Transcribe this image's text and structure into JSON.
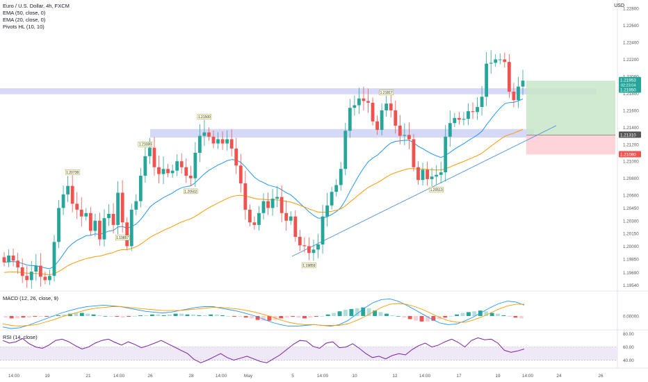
{
  "legend": {
    "symbol": "Euro / U.S. Dollar, 4h, FXCM",
    "ema50": "EMA (50, close, 0)",
    "ema20": "EMA (20, close, 0)",
    "pivots": "Pivots HL (10, 10)",
    "macd": "MACD (12, 26, close, 9)",
    "rsi": "RSI (14, close)"
  },
  "currency_label": "USD",
  "colors": {
    "up": "#26a69a",
    "down": "#ef5350",
    "ema20": "#2196f3",
    "ema50": "#ff9800",
    "zone": "#b4b8f0",
    "target": "#c8e6c9",
    "stop": "#ffcdd2",
    "rsi": "#7b1fa2",
    "rsi_band": "#ede7f6"
  },
  "chart_data": [
    {
      "type": "candlestick",
      "title": "Euro / U.S. Dollar, 4h, FXCM",
      "y_ticks": [
        "1.22800",
        "1.22600",
        "1.22400",
        "1.22200",
        "1.22000",
        "1.21800",
        "1.21600",
        "1.21400",
        "1.21200",
        "1.21000",
        "1.20800",
        "1.20600",
        "1.20450",
        "1.20300",
        "1.20150",
        "1.20000",
        "1.19850",
        "1.19690",
        "1.19540"
      ],
      "x_ticks": [
        "14:00",
        "19",
        "21",
        "14:00",
        "26",
        "28",
        "14:00",
        "May",
        "5",
        "14:00",
        "10",
        "12",
        "14:00",
        "17",
        "19",
        "14:00",
        "24",
        "26"
      ],
      "price_badges": [
        {
          "label": "1.21953",
          "sub": "02:23:04",
          "color": "#26a69a"
        },
        {
          "label": "1.21950",
          "color": "#26a69a"
        },
        {
          "label": "1.21310",
          "color": "#555555"
        },
        {
          "label": "1.21080",
          "color": "#ef5350"
        }
      ],
      "pivot_labels": [
        {
          "label": "1.20738",
          "high": true
        },
        {
          "label": "1.21089",
          "high": true
        },
        {
          "label": "1.21500",
          "high": true
        },
        {
          "label": "1.20502",
          "high": false
        },
        {
          "label": "1.19857",
          "high": false
        },
        {
          "label": "1.19859",
          "high": false
        },
        {
          "label": "1.21817",
          "high": true
        },
        {
          "label": "1.20513",
          "high": false
        }
      ],
      "horizontal_zones": [
        [
          1.2179,
          1.2186
        ],
        [
          1.2128,
          1.2138
        ]
      ],
      "trendline": {
        "x": [
          61,
          116
        ],
        "y": [
          1.1991,
          1.2141
        ]
      },
      "position": {
        "entry": 1.2131,
        "target": 1.2195,
        "stop": 1.2108,
        "x_start": 109,
        "x_end": 128
      },
      "ylim": [
        1.1948,
        1.229
      ],
      "closes": [
        1.1981,
        1.1989,
        1.1983,
        1.1975,
        1.1965,
        1.196,
        1.197,
        1.1977,
        1.1964,
        1.196,
        1.1965,
        1.2005,
        1.2045,
        1.2061,
        1.2071,
        1.205,
        1.2043,
        1.2035,
        1.2039,
        1.2018,
        1.203,
        1.2008,
        1.2033,
        1.2038,
        1.2025,
        1.2063,
        1.2028,
        1.2,
        1.2043,
        1.2053,
        1.2083,
        1.2106,
        1.2116,
        1.2093,
        1.2085,
        1.2091,
        1.2086,
        1.2089,
        1.21,
        1.2093,
        1.2083,
        1.208,
        1.211,
        1.213,
        1.2134,
        1.2129,
        1.2121,
        1.2126,
        1.2121,
        1.2126,
        1.2115,
        1.2095,
        1.2074,
        1.2043,
        1.2028,
        1.2025,
        1.2039,
        1.2053,
        1.2045,
        1.2056,
        1.2058,
        1.2039,
        1.203,
        1.2035,
        1.2011,
        1.2001,
        1.2,
        1.1992,
        1.1996,
        1.2002,
        1.2035,
        1.2048,
        1.2064,
        1.2072,
        1.2091,
        1.2136,
        1.2163,
        1.2166,
        1.2174,
        1.2171,
        1.2169,
        1.2147,
        1.2137,
        1.216,
        1.2168,
        1.216,
        1.2142,
        1.213,
        1.2131,
        1.2126,
        1.2093,
        1.2078,
        1.209,
        1.2079,
        1.2082,
        1.2084,
        1.2087,
        1.2129,
        1.2145,
        1.2151,
        1.2149,
        1.215,
        1.2159,
        1.2158,
        1.2164,
        1.2176,
        1.2215,
        1.2216,
        1.222,
        1.222,
        1.2217,
        1.2182,
        1.2172,
        1.2188,
        1.2195
      ]
    },
    {
      "type": "macd",
      "title": "MACD (12, 26, close, 9)",
      "y_ticks": [
        "0.00000"
      ],
      "hist": [
        -0.0002,
        -0.0003,
        -0.0003,
        -0.0002,
        -0.0002,
        -0.0001,
        -0.0001,
        -0.0001,
        0.0,
        0.0001,
        0.0002,
        0.0003,
        0.0004,
        0.0004,
        0.0003,
        0.0002,
        0.0001,
        0.0,
        -0.0001,
        -0.0001,
        -0.0002,
        -0.0001,
        0.0,
        0.0001,
        0.0001,
        0.0002,
        0.0002,
        0.0001,
        0.0002,
        0.0003,
        0.0003,
        0.0002,
        0.0002,
        0.0001,
        0.0001,
        0.0002,
        0.0002,
        0.0001,
        0.0,
        -0.0001,
        -0.0001,
        -0.0002,
        -0.0003,
        -0.0005,
        -0.0006,
        -0.0006,
        -0.0005,
        -0.0003,
        -0.0002,
        -0.0001,
        -0.0002,
        -0.0003,
        -0.0002,
        -0.0001,
        0.0,
        0.0002,
        0.0004,
        0.0006,
        0.0008,
        0.0009,
        0.001,
        0.0011,
        0.001,
        0.0007,
        0.0005,
        0.0003,
        0.0001,
        0.0,
        -0.0002,
        -0.0004,
        -0.0006,
        -0.0007,
        -0.0007,
        -0.0006,
        -0.0004,
        -0.0002,
        0.0,
        0.0002,
        0.0004,
        0.0005,
        0.0006,
        0.0007,
        0.0006,
        0.0004,
        0.0003,
        0.0001,
        -0.0001,
        -0.0002,
        -0.0003
      ],
      "macd": [
        -0.0014,
        -0.0016,
        -0.0015,
        -0.0012,
        -0.0008,
        -0.0004,
        0.0,
        0.0004,
        0.0007,
        0.001,
        0.0012,
        0.0013,
        0.0014,
        0.0013,
        0.0012,
        0.001,
        0.0008,
        0.0006,
        0.0005,
        0.0004,
        0.0005,
        0.0007,
        0.0009,
        0.0011,
        0.0012,
        0.0012,
        0.001,
        0.0008,
        0.0006,
        0.0003,
        0.0,
        -0.0004,
        -0.0008,
        -0.0011,
        -0.0013,
        -0.0013,
        -0.0012,
        -0.0011,
        -0.0012,
        -0.0013,
        -0.0011,
        -0.0006,
        0.0002,
        0.001,
        0.0017,
        0.0021,
        0.0022,
        0.0019,
        0.0014,
        0.0008,
        0.0002,
        -0.0004,
        -0.0009,
        -0.0011,
        -0.001,
        -0.0006,
        -0.0001,
        0.0005,
        0.0011,
        0.0016,
        0.0019,
        0.0018,
        0.0014
      ],
      "signal": [
        -0.001,
        -0.0012,
        -0.0013,
        -0.0012,
        -0.0011,
        -0.0008,
        -0.0005,
        -0.0001,
        0.0002,
        0.0005,
        0.0008,
        0.001,
        0.0011,
        0.0012,
        0.0012,
        0.0011,
        0.001,
        0.0009,
        0.0008,
        0.0007,
        0.0007,
        0.0007,
        0.0008,
        0.0009,
        0.001,
        0.0011,
        0.0011,
        0.001,
        0.0009,
        0.0007,
        0.0005,
        0.0002,
        -0.0001,
        -0.0005,
        -0.0008,
        -0.001,
        -0.0011,
        -0.0011,
        -0.0012,
        -0.0012,
        -0.0012,
        -0.001,
        -0.0006,
        -0.0001,
        0.0005,
        0.0011,
        0.0015,
        0.0016,
        0.0015,
        0.0012,
        0.0008,
        0.0003,
        -0.0002,
        -0.0006,
        -0.0008,
        -0.0008,
        -0.0005,
        -0.0001,
        0.0004,
        0.0009,
        0.0013,
        0.0015,
        0.0015
      ]
    },
    {
      "type": "line",
      "title": "RSI (14, close)",
      "y_ticks": [
        "80.00",
        "60.00",
        "40.00"
      ],
      "ylim": [
        30,
        85
      ],
      "band": [
        40,
        60
      ],
      "values": [
        70,
        66,
        68,
        73,
        65,
        60,
        58,
        63,
        70,
        72,
        68,
        62,
        57,
        60,
        66,
        70,
        72,
        67,
        63,
        68,
        64,
        59,
        62,
        66,
        70,
        65,
        60,
        55,
        50,
        41,
        36,
        40,
        45,
        50,
        44,
        40,
        43,
        46,
        42,
        38,
        36,
        42,
        48,
        56,
        64,
        70,
        69,
        61,
        58,
        66,
        68,
        59,
        60,
        65,
        58,
        50,
        44,
        46,
        42,
        47,
        50,
        48,
        56,
        62,
        66,
        60,
        63,
        68,
        72,
        67,
        60,
        70,
        74,
        71,
        72,
        66,
        55,
        52,
        54,
        57
      ]
    }
  ]
}
